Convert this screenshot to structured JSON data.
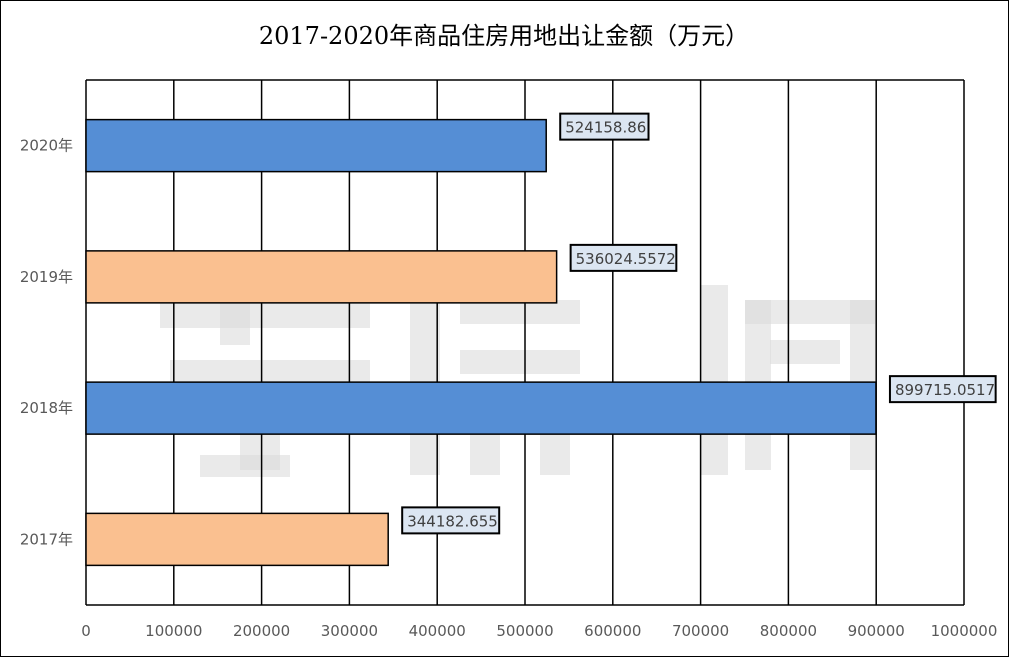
{
  "chart_data": {
    "type": "bar",
    "orientation": "horizontal",
    "title": "2017-2020年商品住房用地出让金额（万元）",
    "categories": [
      "2017年",
      "2018年",
      "2019年",
      "2020年"
    ],
    "values": [
      344182.655,
      899715.0517,
      536024.5572,
      524158.86
    ],
    "data_labels": [
      "344182.655",
      "899715.0517",
      "536024.5572",
      "524158.86"
    ],
    "bar_colors": [
      "#fac090",
      "#558ed5",
      "#fac090",
      "#558ed5"
    ],
    "xlim": [
      0,
      1000000
    ],
    "xticks": [
      0,
      100000,
      200000,
      300000,
      400000,
      500000,
      600000,
      700000,
      800000,
      900000,
      1000000
    ],
    "xlabel": "",
    "ylabel": "",
    "grid": true,
    "legend": "none",
    "label_fill": "#dce6f2",
    "watermark": "孝房网"
  }
}
